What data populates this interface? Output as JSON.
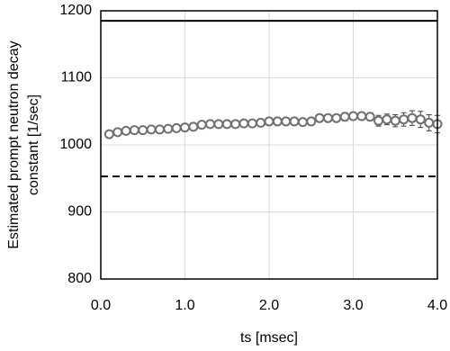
{
  "chart_data": {
    "type": "scatter",
    "x_label": "ts [msec]",
    "y_label": [
      "Estimated prompt neutron decay",
      "constant [1/sec]"
    ],
    "xlim": [
      0,
      4
    ],
    "ylim": [
      800,
      1200
    ],
    "xticks": [
      {
        "value": 0,
        "label": "0.0"
      },
      {
        "value": 1,
        "label": "1.0"
      },
      {
        "value": 2,
        "label": "2.0"
      },
      {
        "value": 3,
        "label": "3.0"
      },
      {
        "value": 4,
        "label": "4.0"
      }
    ],
    "yticks": [
      800,
      900,
      1000,
      1100,
      1200
    ],
    "grid": true,
    "hlines": [
      {
        "value": 1185,
        "style": "solid",
        "color": "#000000"
      },
      {
        "value": 953,
        "style": "dashed",
        "color": "#000000"
      }
    ],
    "series": [
      {
        "color": "#707070",
        "x": [
          0.1,
          0.2,
          0.3,
          0.4,
          0.5,
          0.6,
          0.7,
          0.8,
          0.9,
          1.0,
          1.1,
          1.2,
          1.3,
          1.4,
          1.5,
          1.6,
          1.7,
          1.8,
          1.9,
          2.0,
          2.1,
          2.2,
          2.3,
          2.4,
          2.5,
          2.6,
          2.7,
          2.8,
          2.9,
          3.0,
          3.1,
          3.2,
          3.3,
          3.4,
          3.5,
          3.6,
          3.7,
          3.8,
          3.9,
          4.0
        ],
        "values": [
          1016,
          1019,
          1021,
          1022,
          1022,
          1023,
          1023,
          1024,
          1025,
          1026,
          1027,
          1030,
          1031,
          1031,
          1031,
          1031,
          1032,
          1032,
          1033,
          1035,
          1035,
          1035,
          1035,
          1034,
          1035,
          1040,
          1040,
          1040,
          1042,
          1043,
          1043,
          1042,
          1036,
          1038,
          1036,
          1038,
          1040,
          1038,
          1033,
          1031
        ],
        "errors": [
          3,
          3,
          3,
          3,
          3,
          3,
          3,
          3,
          3,
          3,
          3,
          3,
          3,
          3,
          3,
          3,
          3,
          3,
          3,
          3,
          3,
          3,
          3,
          3,
          3,
          5,
          5,
          5,
          6,
          6,
          6,
          6,
          8,
          8,
          9,
          10,
          11,
          12,
          12,
          13
        ]
      }
    ]
  }
}
